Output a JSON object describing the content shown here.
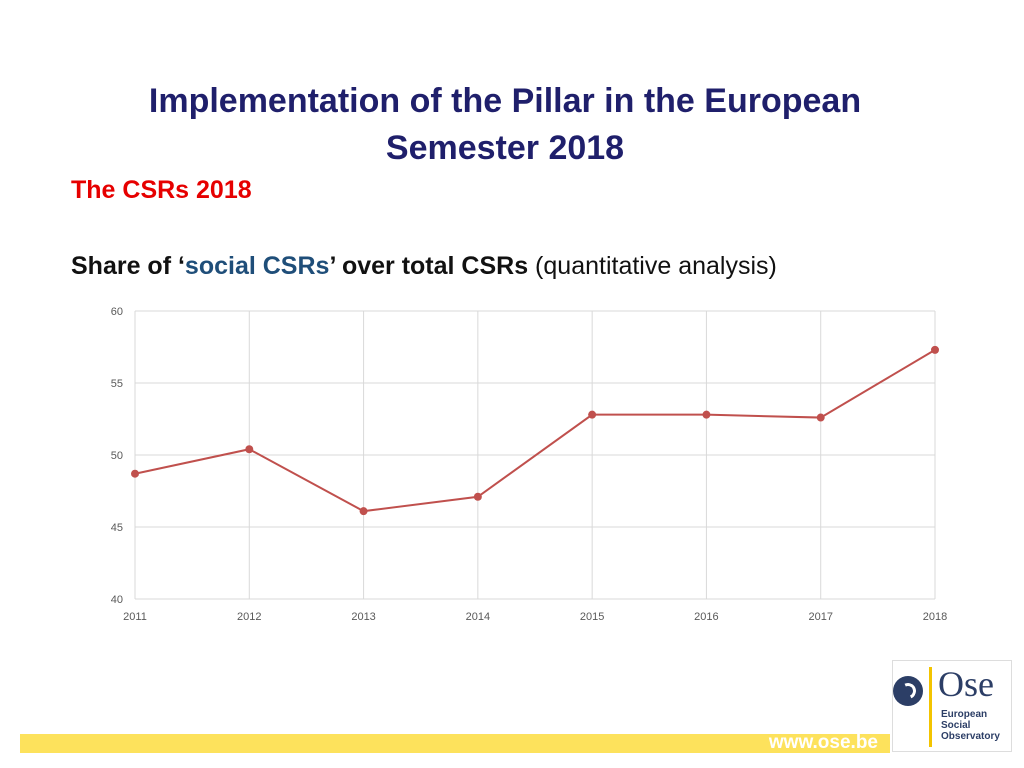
{
  "slide": {
    "title": "Implementation of the Pillar in the European Semester 2018",
    "subtitle": "The CSRs 2018",
    "heading": {
      "part1": "Share of ‘",
      "highlight": "social CSRs",
      "part2": "’ over total CSRs",
      "part3": " (quantitative analysis)"
    }
  },
  "chart_data": {
    "type": "line",
    "x": [
      "2011",
      "2012",
      "2013",
      "2014",
      "2015",
      "2016",
      "2017",
      "2018"
    ],
    "series": [
      {
        "values": [
          48.7,
          50.4,
          46.1,
          47.1,
          52.8,
          52.8,
          52.6,
          57.3
        ]
      }
    ],
    "ylim": [
      40,
      60
    ],
    "yticks": [
      "40",
      "45",
      "50",
      "55",
      "60"
    ],
    "grid": true,
    "colors": {
      "line": "#c0504d",
      "grid": "#d9d9d9"
    }
  },
  "footer": {
    "url": "www.ose.be",
    "logo_name": "Ose",
    "logo_sub": "European\nSocial\nObservatory"
  }
}
